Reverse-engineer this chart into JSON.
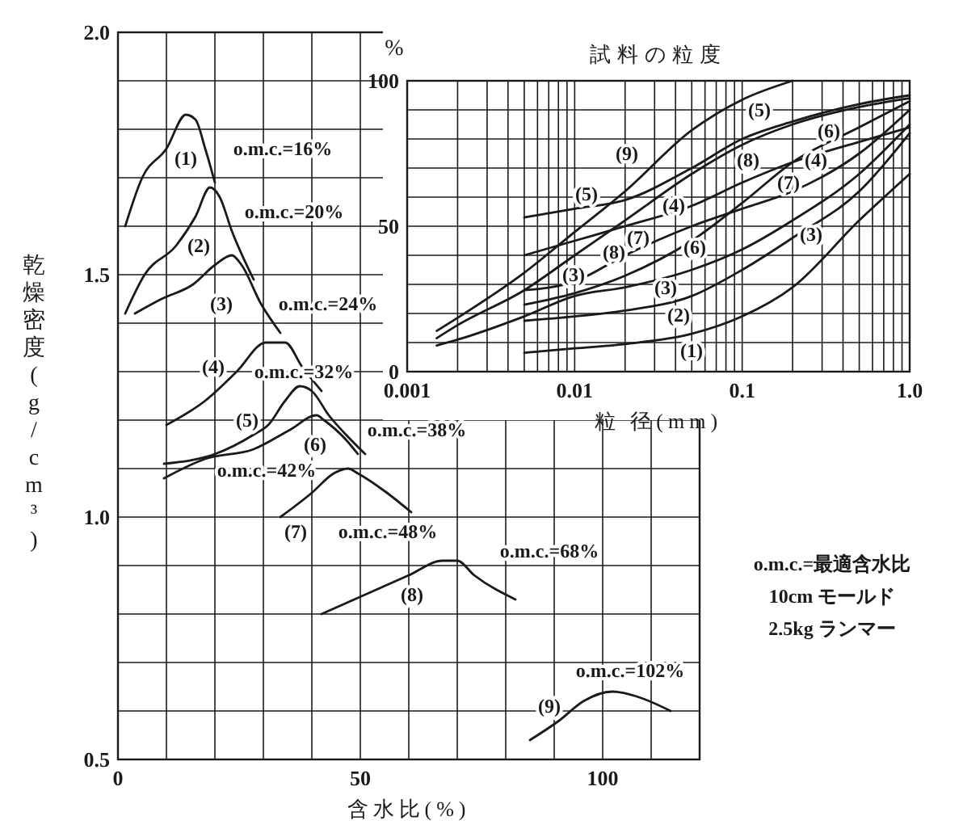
{
  "chart_data": [
    {
      "type": "line",
      "xlabel": "含水比(%)",
      "ylabel": "乾燥密度(g/cm³)",
      "xlim": [
        0,
        120
      ],
      "ylim": [
        0.5,
        2.0
      ],
      "xticks": [
        0,
        {
          "value": 10,
          "label": null
        },
        {
          "value": 20,
          "label": null
        },
        {
          "value": 30,
          "label": null
        },
        {
          "value": 40,
          "label": null
        },
        50,
        {
          "value": 60,
          "label": null
        },
        {
          "value": 70,
          "label": null
        },
        {
          "value": 80,
          "label": null
        },
        {
          "value": 90,
          "label": null
        },
        100,
        {
          "value": 110,
          "label": null
        },
        {
          "value": 120,
          "label": null
        }
      ],
      "yticks": [
        0.5,
        {
          "value": 0.6,
          "label": null
        },
        {
          "value": 0.7,
          "label": null
        },
        {
          "value": 0.8,
          "label": null
        },
        {
          "value": 0.9,
          "label": null
        },
        {
          "value": 1.0,
          "label": "1.0"
        },
        {
          "value": 1.1,
          "label": null
        },
        {
          "value": 1.2,
          "label": null
        },
        {
          "value": 1.3,
          "label": null
        },
        {
          "value": 1.4,
          "label": null
        },
        1.5,
        {
          "value": 1.6,
          "label": null
        },
        {
          "value": 1.7,
          "label": null
        },
        {
          "value": 1.8,
          "label": null
        },
        {
          "value": 1.9,
          "label": null
        },
        {
          "value": 2.0,
          "label": "2.0"
        }
      ],
      "grid": true,
      "marker": "none",
      "line_style": "solid",
      "series": [
        {
          "color": "#1a1a1a",
          "x": [
            1.5,
            5,
            10,
            14,
            16,
            18,
            20
          ],
          "values": [
            1.6,
            1.7,
            1.76,
            1.83,
            1.82,
            1.76,
            1.69
          ]
        },
        {
          "color": "#1a1a1a",
          "x": [
            1.5,
            5.5,
            12,
            16,
            19,
            21,
            23.5,
            28
          ],
          "values": [
            1.42,
            1.5,
            1.56,
            1.62,
            1.68,
            1.66,
            1.59,
            1.49
          ]
        },
        {
          "color": "#1a1a1a",
          "x": [
            3.5,
            9,
            15.5,
            20,
            23.5,
            25.5,
            29.5,
            33.5
          ],
          "values": [
            1.42,
            1.45,
            1.48,
            1.52,
            1.54,
            1.52,
            1.44,
            1.38
          ]
        },
        {
          "color": "#1a1a1a",
          "x": [
            10,
            18,
            24.5,
            30.5,
            34.5,
            38,
            42
          ],
          "values": [
            1.19,
            1.24,
            1.3,
            1.36,
            1.36,
            1.31,
            1.26
          ]
        },
        {
          "color": "#1a1a1a",
          "x": [
            9.5,
            20,
            28,
            31,
            34.5,
            37.5,
            40,
            43.5,
            48,
            51
          ],
          "values": [
            1.11,
            1.13,
            1.17,
            1.19,
            1.24,
            1.27,
            1.26,
            1.21,
            1.16,
            1.13
          ]
        },
        {
          "color": "#1a1a1a",
          "x": [
            9.5,
            18,
            28,
            35.5,
            41,
            42.5,
            47,
            49.5
          ],
          "values": [
            1.08,
            1.12,
            1.14,
            1.18,
            1.21,
            1.2,
            1.16,
            1.13
          ]
        },
        {
          "color": "#1a1a1a",
          "x": [
            33.5,
            40,
            44.5,
            47.5,
            49.5,
            55.5,
            60.5
          ],
          "values": [
            1.0,
            1.05,
            1.09,
            1.1,
            1.09,
            1.05,
            1.01
          ]
        },
        {
          "color": "#1a1a1a",
          "x": [
            42,
            51,
            60,
            67,
            70,
            73.5,
            82
          ],
          "values": [
            0.8,
            0.84,
            0.88,
            0.91,
            0.91,
            0.88,
            0.83
          ]
        },
        {
          "color": "#1a1a1a",
          "x": [
            85,
            91,
            96,
            102,
            107,
            114
          ],
          "values": [
            0.54,
            0.58,
            0.62,
            0.64,
            0.63,
            0.6
          ]
        }
      ],
      "annotations": [
        "(1)",
        "(2)",
        "(3)",
        "(4)",
        "(5)",
        "(6)",
        "(7)",
        "(8)",
        "(9)",
        "o.m.c.=16%",
        "o.m.c.=20%",
        "o.m.c.=24%",
        "o.m.c.=32%",
        "o.m.c.=38%",
        "o.m.c.=42%",
        "o.m.c.=48%",
        "o.m.c.=68%",
        "o.m.c.=102%",
        "o.m.c.=最適含水比",
        "10cm モールド",
        "2.5kg ランマー"
      ]
    },
    {
      "type": "line",
      "title": "試料の粒度",
      "xlabel": "粒 径(mm)",
      "ylabel": "%",
      "log": "x",
      "xlim": [
        0.001,
        1
      ],
      "ylim": [
        0,
        100
      ],
      "xticks": [
        0.001,
        {
          "value": 0.002,
          "label": null
        },
        {
          "value": 0.003,
          "label": null
        },
        {
          "value": 0.004,
          "label": null
        },
        {
          "value": 0.005,
          "label": null
        },
        {
          "value": 0.006,
          "label": null
        },
        {
          "value": 0.007,
          "label": null
        },
        {
          "value": 0.008,
          "label": null
        },
        {
          "value": 0.009,
          "label": null
        },
        0.01,
        {
          "value": 0.02,
          "label": null
        },
        {
          "value": 0.03,
          "label": null
        },
        {
          "value": 0.04,
          "label": null
        },
        {
          "value": 0.05,
          "label": null
        },
        {
          "value": 0.06,
          "label": null
        },
        {
          "value": 0.07,
          "label": null
        },
        {
          "value": 0.08,
          "label": null
        },
        {
          "value": 0.09,
          "label": null
        },
        0.1,
        {
          "value": 0.2,
          "label": null
        },
        {
          "value": 0.3,
          "label": null
        },
        {
          "value": 0.4,
          "label": null
        },
        {
          "value": 0.5,
          "label": null
        },
        {
          "value": 0.6,
          "label": null
        },
        {
          "value": 0.7,
          "label": null
        },
        {
          "value": 0.8,
          "label": null
        },
        {
          "value": 0.9,
          "label": null
        },
        {
          "value": 1,
          "label": "1.0"
        }
      ],
      "yticks": [
        0,
        {
          "value": 10,
          "label": null
        },
        {
          "value": 20,
          "label": null
        },
        {
          "value": 30,
          "label": null
        },
        {
          "value": 40,
          "label": null
        },
        50,
        {
          "value": 60,
          "label": null
        },
        {
          "value": 70,
          "label": null
        },
        {
          "value": 80,
          "label": null
        },
        {
          "value": 90,
          "label": null
        },
        100
      ],
      "grid": true,
      "marker": "none",
      "line_style": "solid",
      "series": [
        {
          "color": "#1a1a1a",
          "x": [
            0.005,
            0.01,
            0.02,
            0.05,
            0.1,
            0.2,
            0.5,
            1
          ],
          "values": [
            6.5,
            8,
            9.5,
            13,
            19,
            29,
            52,
            68
          ]
        },
        {
          "color": "#1a1a1a",
          "x": [
            0.005,
            0.01,
            0.02,
            0.05,
            0.1,
            0.2,
            0.5,
            1
          ],
          "values": [
            17.5,
            19,
            21,
            26,
            35,
            46,
            62,
            82
          ]
        },
        {
          "color": "#1a1a1a",
          "x": [
            0.0015,
            0.002,
            0.005,
            0.01,
            0.02,
            0.05,
            0.1,
            0.2,
            0.5,
            1
          ],
          "values": [
            9,
            11,
            19,
            26,
            29,
            35,
            42,
            52,
            68,
            85
          ]
        },
        {
          "color": "#1a1a1a",
          "x": [
            0.005,
            0.01,
            0.02,
            0.05,
            0.1,
            0.2,
            0.5,
            1
          ],
          "values": [
            40,
            45,
            50,
            57,
            65,
            72,
            79,
            84
          ]
        },
        {
          "color": "#1a1a1a",
          "x": [
            0.005,
            0.01,
            0.02,
            0.05,
            0.1,
            0.2,
            0.5,
            1
          ],
          "values": [
            53,
            56,
            59,
            70,
            80,
            86,
            92,
            95
          ]
        },
        {
          "color": "#1a1a1a",
          "x": [
            0.005,
            0.01,
            0.02,
            0.05,
            0.1,
            0.2,
            0.5,
            1
          ],
          "values": [
            23,
            27,
            33,
            45,
            58,
            72,
            84,
            93
          ]
        },
        {
          "color": "#1a1a1a",
          "x": [
            0.005,
            0.01,
            0.02,
            0.05,
            0.1,
            0.2,
            0.5,
            1
          ],
          "values": [
            28,
            31,
            40,
            50,
            56,
            62,
            75,
            90
          ]
        },
        {
          "color": "#1a1a1a",
          "x": [
            0.0015,
            0.002,
            0.005,
            0.01,
            0.02,
            0.05,
            0.1,
            0.2,
            0.5,
            1
          ],
          "values": [
            11.5,
            16,
            28,
            40,
            52,
            68,
            78,
            85,
            91,
            94
          ]
        },
        {
          "color": "#1a1a1a",
          "x": [
            0.0015,
            0.002,
            0.005,
            0.01,
            0.02,
            0.05,
            0.1,
            0.2
          ],
          "values": [
            14,
            18.5,
            34,
            48,
            62,
            83,
            93.5,
            100
          ]
        }
      ],
      "annotations": [
        "(5)",
        "(9)",
        "(8)",
        "(6)",
        "(4)",
        "(7)",
        "(5)",
        "(4)",
        "(7)",
        "(8)",
        "(3)",
        "(6)",
        "(3)",
        "(3)",
        "(2)",
        "(1)"
      ]
    }
  ]
}
